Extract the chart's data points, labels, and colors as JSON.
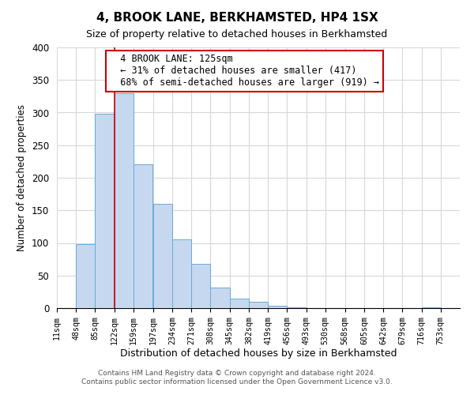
{
  "title": "4, BROOK LANE, BERKHAMSTED, HP4 1SX",
  "subtitle": "Size of property relative to detached houses in Berkhamsted",
  "xlabel": "Distribution of detached houses by size in Berkhamsted",
  "ylabel": "Number of detached properties",
  "bin_labels": [
    "11sqm",
    "48sqm",
    "85sqm",
    "122sqm",
    "159sqm",
    "197sqm",
    "234sqm",
    "271sqm",
    "308sqm",
    "345sqm",
    "382sqm",
    "419sqm",
    "456sqm",
    "493sqm",
    "530sqm",
    "568sqm",
    "605sqm",
    "642sqm",
    "679sqm",
    "716sqm",
    "753sqm"
  ],
  "bin_edges": [
    11,
    48,
    85,
    122,
    159,
    197,
    234,
    271,
    308,
    345,
    382,
    419,
    456,
    493,
    530,
    568,
    605,
    642,
    679,
    716,
    753
  ],
  "bar_heights": [
    0,
    98,
    298,
    330,
    220,
    160,
    105,
    68,
    32,
    14,
    10,
    4,
    1,
    0,
    0,
    0,
    0,
    0,
    0,
    1,
    0
  ],
  "bar_color": "#c5d8f0",
  "bar_edge_color": "#6aaad4",
  "property_line_x": 122,
  "property_line_color": "#cc0000",
  "ylim": [
    0,
    400
  ],
  "yticks": [
    0,
    50,
    100,
    150,
    200,
    250,
    300,
    350,
    400
  ],
  "annotation_title": "4 BROOK LANE: 125sqm",
  "annotation_line1": "← 31% of detached houses are smaller (417)",
  "annotation_line2": "68% of semi-detached houses are larger (919) →",
  "annotation_box_color": "#ffffff",
  "annotation_box_edge_color": "#cc0000",
  "footer_line1": "Contains HM Land Registry data © Crown copyright and database right 2024.",
  "footer_line2": "Contains public sector information licensed under the Open Government Licence v3.0.",
  "background_color": "#ffffff",
  "grid_color": "#d8d8d8"
}
